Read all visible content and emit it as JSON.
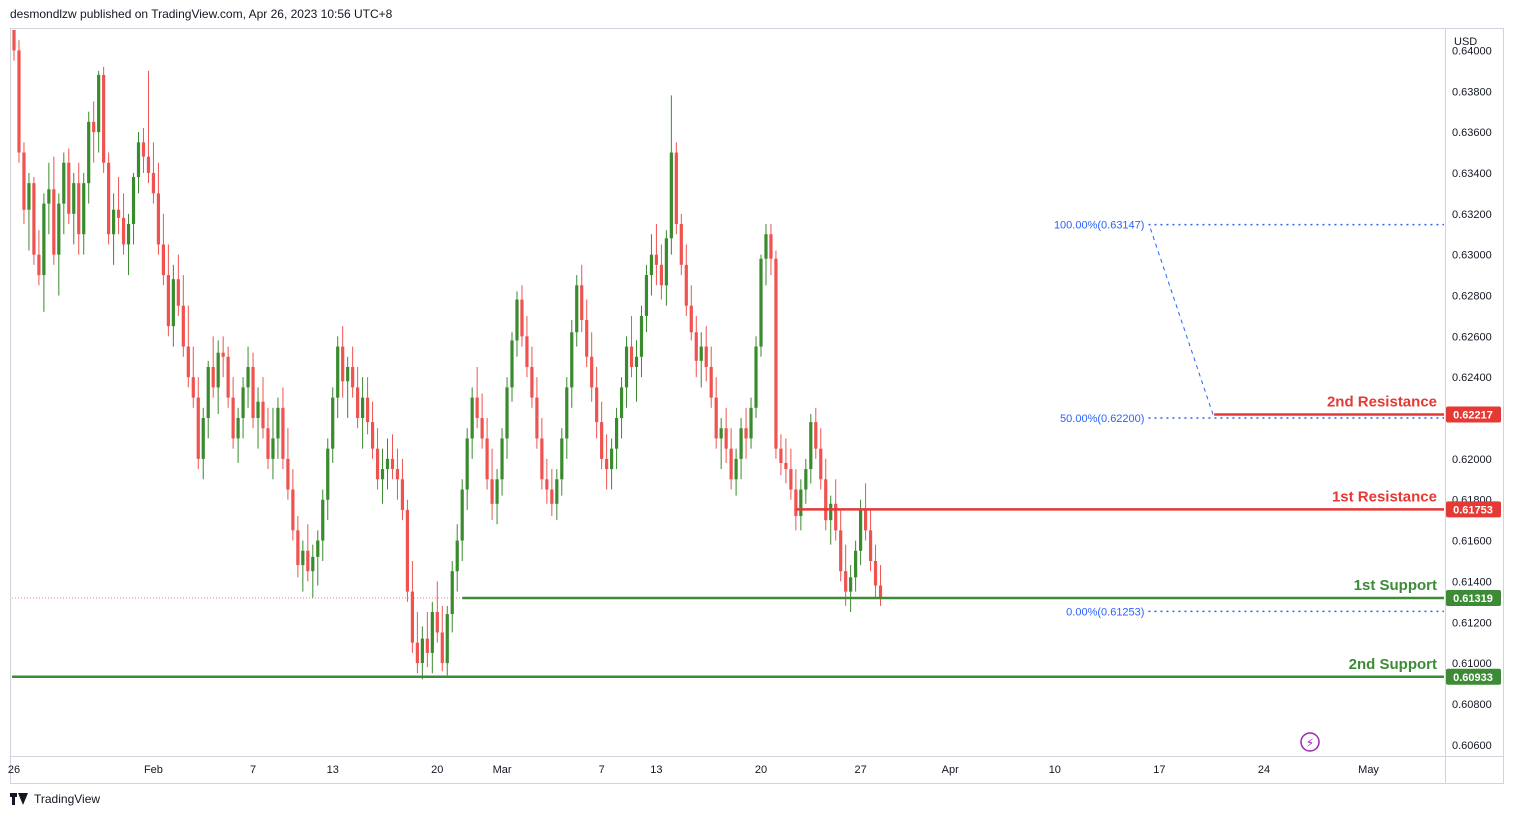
{
  "header": {
    "publisher_line": "desmondlzw published on TradingView.com, Apr 26, 2023 10:56 UTC+8"
  },
  "footer": {
    "brand": "TradingView"
  },
  "colors": {
    "up": "#26a69a",
    "green_candle": "#3a8a2e",
    "red_candle": "#ef5350",
    "resistance": "#e53935",
    "support": "#3d8b37",
    "fib": "#2962ff",
    "grid_text": "#131722"
  },
  "chart_data": {
    "type": "candlestick",
    "currency_label": "USD",
    "ylim": [
      0.6055,
      0.641
    ],
    "y_ticks": [
      0.64,
      0.638,
      0.636,
      0.634,
      0.632,
      0.63,
      0.628,
      0.626,
      0.624,
      0.622,
      0.62,
      0.618,
      0.616,
      0.614,
      0.612,
      0.61,
      0.608,
      0.606
    ],
    "y_tick_labels": [
      "0.64000",
      "0.63800",
      "0.63600",
      "0.63400",
      "0.63200",
      "0.63000",
      "0.62800",
      "0.62600",
      "0.62400",
      "0.62200",
      "0.62000",
      "0.61800",
      "0.61600",
      "0.61400",
      "0.61200",
      "0.61000",
      "0.60800",
      "0.60600"
    ],
    "x_tick_labels": [
      "26",
      "Feb",
      "7",
      "13",
      "20",
      "Mar",
      "7",
      "13",
      "20",
      "27",
      "Apr",
      "10",
      "17",
      "24",
      "May"
    ],
    "x_tick_index": [
      0,
      28,
      48,
      64,
      85,
      98,
      118,
      129,
      150,
      170,
      188,
      209,
      230,
      251,
      272
    ],
    "levels": [
      {
        "label": "2nd Resistance",
        "value": 0.62217,
        "value_label": "0.62217",
        "color": "#e53935",
        "from_index": 241
      },
      {
        "label": "1st Resistance",
        "value": 0.61753,
        "value_label": "0.61753",
        "color": "#e53935",
        "from_index": 157
      },
      {
        "label": "1st Support",
        "value": 0.61319,
        "value_label": "0.61319",
        "color": "#3d8b37",
        "from_index": 90
      },
      {
        "label": "2nd Support",
        "value": 0.60933,
        "value_label": "0.60933",
        "color": "#3d8b37",
        "from_index": 0
      }
    ],
    "fib_levels": [
      {
        "label": "100.00%(0.63147)",
        "value": 0.63147
      },
      {
        "label": "50.00%(0.62200)",
        "value": 0.622
      },
      {
        "label": "0.00%(0.61253)",
        "value": 0.61253
      }
    ],
    "fib_start_index": 227,
    "current_price": 0.61319,
    "candles": [
      [
        0.6425,
        0.643,
        0.6395,
        0.64
      ],
      [
        0.64,
        0.6405,
        0.6345,
        0.635
      ],
      [
        0.635,
        0.6355,
        0.6315,
        0.6322
      ],
      [
        0.6322,
        0.634,
        0.6302,
        0.6335
      ],
      [
        0.6335,
        0.6338,
        0.6295,
        0.63
      ],
      [
        0.63,
        0.6312,
        0.6285,
        0.629
      ],
      [
        0.629,
        0.633,
        0.6272,
        0.6325
      ],
      [
        0.6325,
        0.6345,
        0.631,
        0.6332
      ],
      [
        0.6332,
        0.6348,
        0.6295,
        0.63
      ],
      [
        0.63,
        0.633,
        0.628,
        0.6325
      ],
      [
        0.6325,
        0.635,
        0.631,
        0.6345
      ],
      [
        0.6345,
        0.6352,
        0.6315,
        0.632
      ],
      [
        0.632,
        0.634,
        0.6305,
        0.6335
      ],
      [
        0.6335,
        0.6345,
        0.63,
        0.631
      ],
      [
        0.631,
        0.634,
        0.63,
        0.6335
      ],
      [
        0.6335,
        0.637,
        0.6325,
        0.6365
      ],
      [
        0.6365,
        0.6375,
        0.6345,
        0.636
      ],
      [
        0.636,
        0.639,
        0.635,
        0.6388
      ],
      [
        0.6388,
        0.6392,
        0.634,
        0.6345
      ],
      [
        0.6345,
        0.635,
        0.6305,
        0.631
      ],
      [
        0.631,
        0.633,
        0.6295,
        0.6322
      ],
      [
        0.6322,
        0.6338,
        0.631,
        0.6318
      ],
      [
        0.6318,
        0.633,
        0.63,
        0.6305
      ],
      [
        0.6305,
        0.632,
        0.629,
        0.6315
      ],
      [
        0.6315,
        0.634,
        0.6305,
        0.6338
      ],
      [
        0.6338,
        0.636,
        0.633,
        0.6355
      ],
      [
        0.6355,
        0.6362,
        0.634,
        0.6348
      ],
      [
        0.6348,
        0.639,
        0.6335,
        0.634
      ],
      [
        0.634,
        0.6355,
        0.6325,
        0.633
      ],
      [
        0.633,
        0.6345,
        0.63,
        0.6305
      ],
      [
        0.6305,
        0.632,
        0.6285,
        0.629
      ],
      [
        0.629,
        0.6305,
        0.626,
        0.6265
      ],
      [
        0.6265,
        0.6295,
        0.6255,
        0.6288
      ],
      [
        0.6288,
        0.63,
        0.627,
        0.6275
      ],
      [
        0.6275,
        0.629,
        0.625,
        0.6255
      ],
      [
        0.6255,
        0.6275,
        0.6235,
        0.624
      ],
      [
        0.624,
        0.6255,
        0.6225,
        0.623
      ],
      [
        0.623,
        0.624,
        0.6195,
        0.62
      ],
      [
        0.62,
        0.6225,
        0.619,
        0.622
      ],
      [
        0.622,
        0.6248,
        0.621,
        0.6245
      ],
      [
        0.6245,
        0.626,
        0.623,
        0.6235
      ],
      [
        0.6235,
        0.6258,
        0.6222,
        0.6252
      ],
      [
        0.6252,
        0.626,
        0.624,
        0.625
      ],
      [
        0.625,
        0.6255,
        0.6225,
        0.623
      ],
      [
        0.623,
        0.624,
        0.6205,
        0.621
      ],
      [
        0.621,
        0.6225,
        0.6198,
        0.622
      ],
      [
        0.622,
        0.624,
        0.621,
        0.6235
      ],
      [
        0.6235,
        0.6255,
        0.6225,
        0.6245
      ],
      [
        0.6245,
        0.6252,
        0.6215,
        0.622
      ],
      [
        0.622,
        0.6235,
        0.6205,
        0.6228
      ],
      [
        0.6228,
        0.624,
        0.621,
        0.6215
      ],
      [
        0.6215,
        0.6225,
        0.6195,
        0.62
      ],
      [
        0.62,
        0.6225,
        0.619,
        0.621
      ],
      [
        0.621,
        0.623,
        0.62,
        0.6225
      ],
      [
        0.6225,
        0.6235,
        0.6195,
        0.62
      ],
      [
        0.62,
        0.6215,
        0.618,
        0.6185
      ],
      [
        0.6185,
        0.6195,
        0.616,
        0.6165
      ],
      [
        0.6165,
        0.6172,
        0.6142,
        0.6148
      ],
      [
        0.6148,
        0.616,
        0.6135,
        0.6155
      ],
      [
        0.6155,
        0.6168,
        0.614,
        0.6145
      ],
      [
        0.6145,
        0.6158,
        0.6132,
        0.6152
      ],
      [
        0.6152,
        0.6165,
        0.6138,
        0.616
      ],
      [
        0.616,
        0.6185,
        0.615,
        0.618
      ],
      [
        0.618,
        0.621,
        0.617,
        0.6205
      ],
      [
        0.6205,
        0.6235,
        0.6198,
        0.623
      ],
      [
        0.623,
        0.626,
        0.622,
        0.6255
      ],
      [
        0.6255,
        0.6265,
        0.623,
        0.6238
      ],
      [
        0.6238,
        0.625,
        0.622,
        0.6245
      ],
      [
        0.6245,
        0.6255,
        0.623,
        0.6235
      ],
      [
        0.6235,
        0.6245,
        0.6215,
        0.622
      ],
      [
        0.622,
        0.624,
        0.6205,
        0.623
      ],
      [
        0.623,
        0.624,
        0.6212,
        0.6218
      ],
      [
        0.6218,
        0.6228,
        0.62,
        0.6205
      ],
      [
        0.6205,
        0.6215,
        0.6185,
        0.619
      ],
      [
        0.619,
        0.6205,
        0.6178,
        0.6195
      ],
      [
        0.6195,
        0.621,
        0.6185,
        0.62
      ],
      [
        0.62,
        0.6212,
        0.619,
        0.6195
      ],
      [
        0.6195,
        0.6205,
        0.618,
        0.619
      ],
      [
        0.619,
        0.62,
        0.617,
        0.6175
      ],
      [
        0.6175,
        0.618,
        0.613,
        0.6135
      ],
      [
        0.6135,
        0.615,
        0.6105,
        0.611
      ],
      [
        0.611,
        0.6125,
        0.6095,
        0.61
      ],
      [
        0.61,
        0.6118,
        0.6092,
        0.6112
      ],
      [
        0.6112,
        0.6125,
        0.6098,
        0.6105
      ],
      [
        0.6105,
        0.613,
        0.6095,
        0.6125
      ],
      [
        0.6125,
        0.614,
        0.611,
        0.6115
      ],
      [
        0.6115,
        0.6128,
        0.6096,
        0.61
      ],
      [
        0.61,
        0.6128,
        0.6094,
        0.6124
      ],
      [
        0.6124,
        0.615,
        0.6115,
        0.6145
      ],
      [
        0.6145,
        0.6168,
        0.6135,
        0.616
      ],
      [
        0.616,
        0.619,
        0.615,
        0.6185
      ],
      [
        0.6185,
        0.6215,
        0.6175,
        0.621
      ],
      [
        0.621,
        0.6235,
        0.62,
        0.623
      ],
      [
        0.623,
        0.6245,
        0.6215,
        0.622
      ],
      [
        0.622,
        0.6232,
        0.6205,
        0.621
      ],
      [
        0.621,
        0.622,
        0.6185,
        0.619
      ],
      [
        0.619,
        0.6205,
        0.617,
        0.6178
      ],
      [
        0.6178,
        0.6195,
        0.6168,
        0.619
      ],
      [
        0.619,
        0.6215,
        0.6182,
        0.621
      ],
      [
        0.621,
        0.624,
        0.62,
        0.6235
      ],
      [
        0.6235,
        0.6262,
        0.6228,
        0.6258
      ],
      [
        0.6258,
        0.6282,
        0.625,
        0.6278
      ],
      [
        0.6278,
        0.6285,
        0.6255,
        0.626
      ],
      [
        0.626,
        0.627,
        0.624,
        0.6245
      ],
      [
        0.6245,
        0.6255,
        0.6225,
        0.623
      ],
      [
        0.623,
        0.624,
        0.6205,
        0.621
      ],
      [
        0.621,
        0.622,
        0.6185,
        0.619
      ],
      [
        0.619,
        0.62,
        0.6178,
        0.6185
      ],
      [
        0.6185,
        0.6195,
        0.6172,
        0.6178
      ],
      [
        0.6178,
        0.6195,
        0.617,
        0.619
      ],
      [
        0.619,
        0.6215,
        0.6182,
        0.621
      ],
      [
        0.621,
        0.624,
        0.62,
        0.6235
      ],
      [
        0.6235,
        0.6268,
        0.6225,
        0.6262
      ],
      [
        0.6262,
        0.629,
        0.6255,
        0.6285
      ],
      [
        0.6285,
        0.6295,
        0.6262,
        0.6268
      ],
      [
        0.6268,
        0.6278,
        0.6245,
        0.625
      ],
      [
        0.625,
        0.6262,
        0.6228,
        0.6235
      ],
      [
        0.6235,
        0.6245,
        0.621,
        0.6218
      ],
      [
        0.6218,
        0.6228,
        0.6195,
        0.62
      ],
      [
        0.62,
        0.6212,
        0.6185,
        0.6195
      ],
      [
        0.6195,
        0.621,
        0.6185,
        0.6205
      ],
      [
        0.6205,
        0.6225,
        0.6195,
        0.622
      ],
      [
        0.622,
        0.624,
        0.621,
        0.6235
      ],
      [
        0.6235,
        0.626,
        0.6225,
        0.6255
      ],
      [
        0.6255,
        0.627,
        0.624,
        0.6245
      ],
      [
        0.6245,
        0.6258,
        0.6228,
        0.625
      ],
      [
        0.625,
        0.6275,
        0.624,
        0.627
      ],
      [
        0.627,
        0.6295,
        0.6262,
        0.629
      ],
      [
        0.629,
        0.631,
        0.628,
        0.63
      ],
      [
        0.63,
        0.6315,
        0.6285,
        0.6295
      ],
      [
        0.6295,
        0.6305,
        0.6278,
        0.6285
      ],
      [
        0.6285,
        0.6312,
        0.6275,
        0.6308
      ],
      [
        0.6308,
        0.6378,
        0.63,
        0.635
      ],
      [
        0.635,
        0.6355,
        0.631,
        0.6315
      ],
      [
        0.6315,
        0.632,
        0.629,
        0.6295
      ],
      [
        0.6295,
        0.6305,
        0.627,
        0.6275
      ],
      [
        0.6275,
        0.6285,
        0.6258,
        0.6262
      ],
      [
        0.6262,
        0.627,
        0.624,
        0.6248
      ],
      [
        0.6248,
        0.6262,
        0.6235,
        0.6255
      ],
      [
        0.6255,
        0.6265,
        0.6238,
        0.6245
      ],
      [
        0.6245,
        0.6255,
        0.6225,
        0.623
      ],
      [
        0.623,
        0.624,
        0.6205,
        0.621
      ],
      [
        0.621,
        0.622,
        0.6195,
        0.6215
      ],
      [
        0.6215,
        0.6225,
        0.6198,
        0.6205
      ],
      [
        0.6205,
        0.6215,
        0.6185,
        0.619
      ],
      [
        0.619,
        0.6205,
        0.6182,
        0.62
      ],
      [
        0.62,
        0.622,
        0.619,
        0.6215
      ],
      [
        0.6215,
        0.6225,
        0.62,
        0.621
      ],
      [
        0.621,
        0.623,
        0.6205,
        0.6225
      ],
      [
        0.6225,
        0.626,
        0.622,
        0.6255
      ],
      [
        0.6255,
        0.63,
        0.625,
        0.6298
      ],
      [
        0.6298,
        0.6315,
        0.6285,
        0.631
      ],
      [
        0.631,
        0.6315,
        0.629,
        0.6298
      ],
      [
        0.6298,
        0.6302,
        0.62,
        0.6205
      ],
      [
        0.6205,
        0.6212,
        0.6192,
        0.6198
      ],
      [
        0.6198,
        0.621,
        0.6188,
        0.6195
      ],
      [
        0.6195,
        0.6205,
        0.618,
        0.6185
      ],
      [
        0.6185,
        0.6195,
        0.6165,
        0.6172
      ],
      [
        0.6172,
        0.619,
        0.6165,
        0.6185
      ],
      [
        0.6185,
        0.62,
        0.6178,
        0.6195
      ],
      [
        0.6195,
        0.6222,
        0.6188,
        0.6218
      ],
      [
        0.6218,
        0.6225,
        0.62,
        0.6205
      ],
      [
        0.6205,
        0.6215,
        0.6185,
        0.619
      ],
      [
        0.619,
        0.62,
        0.6165,
        0.617
      ],
      [
        0.617,
        0.6182,
        0.6158,
        0.6178
      ],
      [
        0.6178,
        0.619,
        0.616,
        0.6165
      ],
      [
        0.6165,
        0.6175,
        0.614,
        0.6145
      ],
      [
        0.6145,
        0.6158,
        0.6128,
        0.6135
      ],
      [
        0.6135,
        0.6148,
        0.6125,
        0.6142
      ],
      [
        0.6142,
        0.616,
        0.6135,
        0.6155
      ],
      [
        0.6155,
        0.618,
        0.6148,
        0.6175
      ],
      [
        0.6175,
        0.6188,
        0.616,
        0.6165
      ],
      [
        0.6165,
        0.6175,
        0.6145,
        0.615
      ],
      [
        0.615,
        0.6158,
        0.6132,
        0.6138
      ],
      [
        0.6138,
        0.6148,
        0.6128,
        0.6132
      ]
    ]
  }
}
